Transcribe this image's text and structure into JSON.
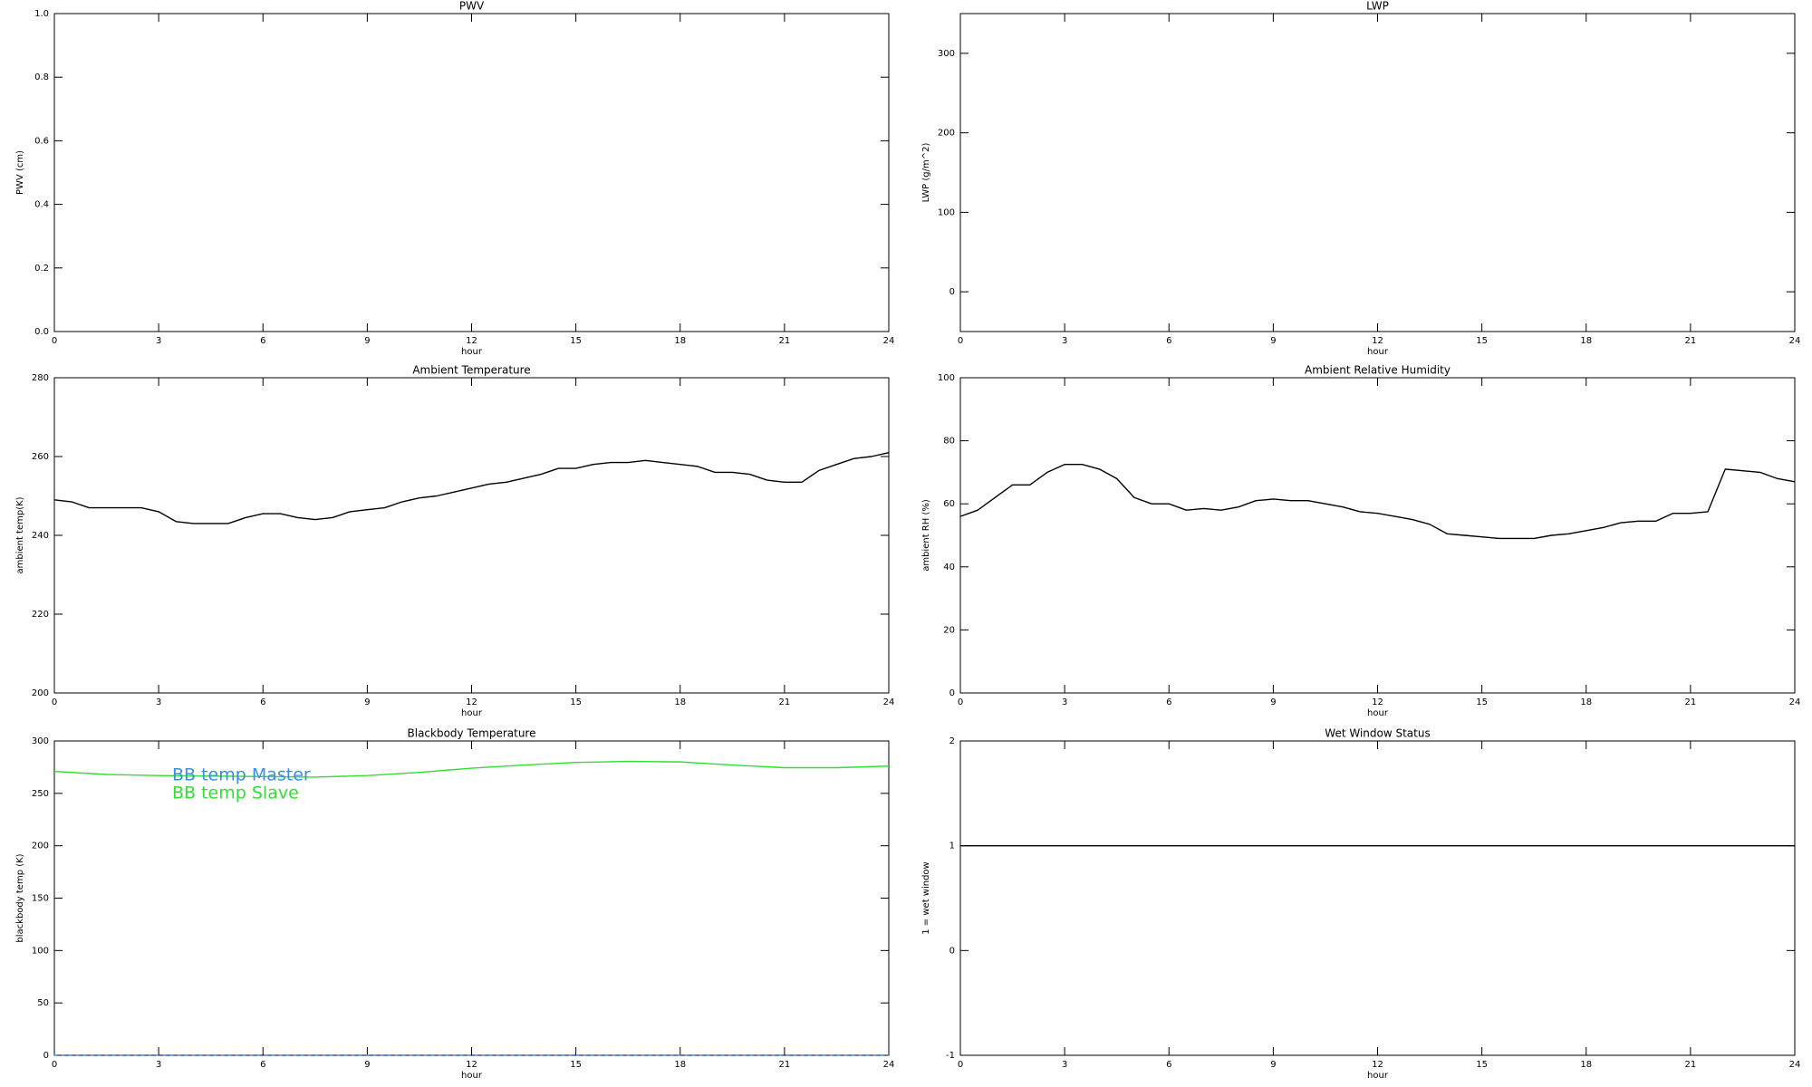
{
  "chart_data": [
    {
      "type": "line",
      "title": "PWV",
      "xlabel": "hour",
      "ylabel": "PWV (cm)",
      "xlim": [
        0,
        24
      ],
      "xticks": [
        0,
        3,
        6,
        9,
        12,
        15,
        18,
        21,
        24
      ],
      "ylim": [
        0,
        1
      ],
      "yticks": [
        {
          "value": 0,
          "label": "0.0"
        },
        {
          "value": 0.2,
          "label": "0.2"
        },
        {
          "value": 0.4,
          "label": "0.4"
        },
        {
          "value": 0.6,
          "label": "0.6"
        },
        {
          "value": 0.8,
          "label": "0.8"
        },
        {
          "value": 1,
          "label": "1.0"
        }
      ]
    },
    {
      "type": "line",
      "title": "LWP",
      "xlabel": "hour",
      "ylabel": "LWP (g/m^2)",
      "xlim": [
        0,
        24
      ],
      "xticks": [
        0,
        3,
        6,
        9,
        12,
        15,
        18,
        21,
        24
      ],
      "ylim": [
        -50,
        350
      ],
      "yticks": [
        0,
        100,
        200,
        300
      ]
    },
    {
      "type": "line",
      "title": "Ambient Temperature",
      "xlabel": "hour",
      "ylabel": "ambient temp(K)",
      "xlim": [
        0,
        24
      ],
      "xticks": [
        0,
        3,
        6,
        9,
        12,
        15,
        18,
        21,
        24
      ],
      "ylim": [
        200,
        280
      ],
      "yticks": [
        200,
        220,
        240,
        260,
        280
      ],
      "x": [
        0,
        0.5,
        1,
        1.5,
        2,
        2.5,
        3,
        3.5,
        4,
        4.5,
        5,
        5.5,
        6,
        6.5,
        7,
        7.5,
        8,
        8.5,
        9,
        9.5,
        10,
        10.5,
        11,
        11.5,
        12,
        12.5,
        13,
        13.5,
        14,
        14.5,
        15,
        15.5,
        16,
        16.5,
        17,
        17.5,
        18,
        18.5,
        19,
        19.5,
        20,
        20.5,
        21,
        21.5,
        22,
        22.5,
        23,
        23.5,
        24
      ],
      "series": [
        {
          "color": "#000000",
          "values": [
            249,
            248.5,
            247,
            247,
            247,
            247,
            246,
            243.5,
            243,
            243,
            243,
            244.5,
            245.5,
            245.5,
            244.5,
            244,
            244.5,
            246,
            246.5,
            247,
            248.5,
            249.5,
            250,
            251,
            252,
            253,
            253.5,
            254.5,
            255.5,
            257,
            257,
            258,
            258.5,
            258.5,
            259,
            258.5,
            258,
            257.5,
            256,
            256,
            255.5,
            254,
            253.5,
            253.5,
            256.5,
            258,
            259.5,
            260,
            261
          ]
        }
      ]
    },
    {
      "type": "line",
      "title": "Ambient Relative Humidity",
      "xlabel": "hour",
      "ylabel": "ambient RH (%)",
      "xlim": [
        0,
        24
      ],
      "xticks": [
        0,
        3,
        6,
        9,
        12,
        15,
        18,
        21,
        24
      ],
      "ylim": [
        0,
        100
      ],
      "yticks": [
        0,
        20,
        40,
        60,
        80,
        100
      ],
      "x": [
        0,
        0.5,
        1,
        1.5,
        2,
        2.5,
        3,
        3.5,
        4,
        4.5,
        5,
        5.5,
        6,
        6.5,
        7,
        7.5,
        8,
        8.5,
        9,
        9.5,
        10,
        10.5,
        11,
        11.5,
        12,
        12.5,
        13,
        13.5,
        14,
        14.5,
        15,
        15.5,
        16,
        16.5,
        17,
        17.5,
        18,
        18.5,
        19,
        19.5,
        20,
        20.5,
        21,
        21.5,
        22,
        22.5,
        23,
        23.5,
        24
      ],
      "series": [
        {
          "color": "#000000",
          "values": [
            56,
            58,
            62,
            66,
            66,
            70,
            72.5,
            72.5,
            71,
            68,
            62,
            60,
            60,
            58,
            58.5,
            58,
            59,
            61,
            61.5,
            61,
            61,
            60,
            59,
            57.5,
            57,
            56,
            55,
            53.5,
            50.5,
            50,
            49.5,
            49,
            49,
            49,
            50,
            50.5,
            51.5,
            52.5,
            54,
            54.5,
            54.5,
            57,
            57,
            57.5,
            71,
            70.5,
            70,
            68,
            67
          ]
        }
      ]
    },
    {
      "type": "line",
      "title": "Blackbody Temperature",
      "xlabel": "hour",
      "ylabel": "blackbody temp (K)",
      "xlim": [
        0,
        24
      ],
      "xticks": [
        0,
        3,
        6,
        9,
        12,
        15,
        18,
        21,
        24
      ],
      "ylim": [
        0,
        300
      ],
      "yticks": [
        0,
        50,
        100,
        150,
        200,
        250,
        300
      ],
      "legend": "upper left",
      "x": [
        0,
        1.5,
        3,
        4.5,
        6,
        7.5,
        9,
        10.5,
        12,
        13.5,
        15,
        16.5,
        18,
        19.5,
        21,
        22.5,
        24
      ],
      "series": [
        {
          "name": "BB temp Master",
          "color": "#3b8fdc",
          "values": [
            0,
            0,
            0,
            0,
            0,
            0,
            0,
            0,
            0,
            0,
            0,
            0,
            0,
            0,
            0,
            0,
            0
          ]
        },
        {
          "name": "BB temp Slave",
          "color": "#33dd33",
          "values": [
            271,
            268,
            267,
            266.5,
            266,
            265.5,
            267,
            270,
            274,
            277,
            279.5,
            280.5,
            280,
            277,
            274.5,
            274.5,
            276
          ]
        }
      ]
    },
    {
      "type": "line",
      "title": "Wet Window Status",
      "xlabel": "hour",
      "ylabel": "1 = wet window",
      "xlim": [
        0,
        24
      ],
      "xticks": [
        0,
        3,
        6,
        9,
        12,
        15,
        18,
        21,
        24
      ],
      "ylim": [
        -1,
        2
      ],
      "yticks": [
        -1,
        0,
        1,
        2
      ],
      "x": [
        0,
        24
      ],
      "series": [
        {
          "color": "#000000",
          "values": [
            1,
            1
          ]
        }
      ]
    }
  ]
}
